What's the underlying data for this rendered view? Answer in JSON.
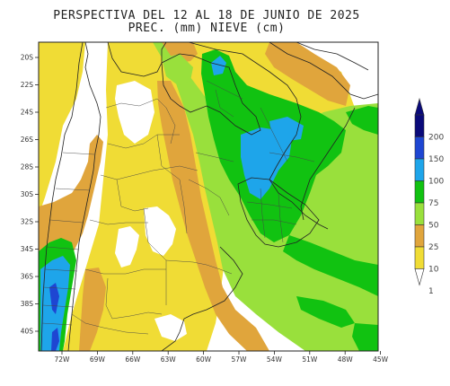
{
  "title": {
    "line1": "PERSPECTIVA DEL 12 AL 18 DE JUNIO DE 2025",
    "line2": "PREC. (mm) NIEVE (cm)"
  },
  "axes": {
    "lat_labels": [
      "20S",
      "22S",
      "24S",
      "26S",
      "28S",
      "30S",
      "32S",
      "34S",
      "36S",
      "38S",
      "40S"
    ],
    "lon_labels": [
      "72W",
      "69W",
      "66W",
      "63W",
      "60W",
      "57W",
      "54W",
      "51W",
      "48W",
      "45W"
    ]
  },
  "colorbar": {
    "levels": [
      "200",
      "150",
      "100",
      "75",
      "50",
      "25",
      "10",
      "1"
    ],
    "colors": [
      "#0a0a7a",
      "#1e46d2",
      "#1ea5ea",
      "#11c211",
      "#99e03c",
      "#e0a53c",
      "#f0dc35",
      "#ffffff"
    ]
  },
  "legend_colors": {
    "ocean": "#ffffff",
    "level_1": "#f0dc35",
    "level_10": "#e0a53c",
    "level_25": "#99e03c",
    "level_50": "#11c211",
    "level_75": "#1ea5ea",
    "level_100": "#1e46d2"
  }
}
